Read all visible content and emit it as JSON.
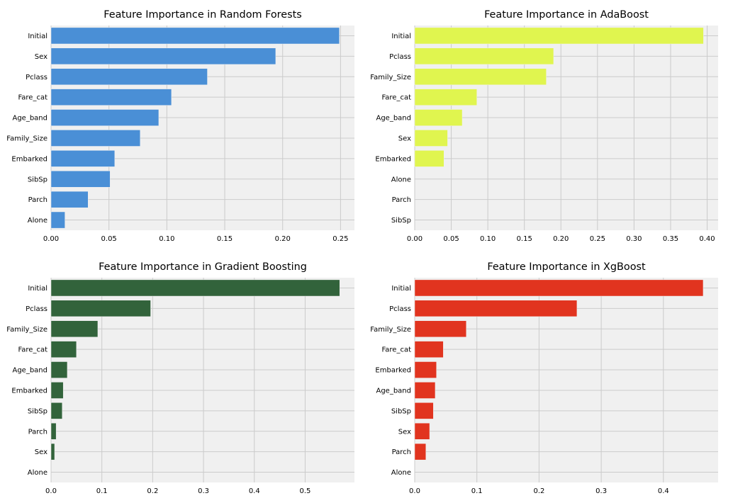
{
  "style": {
    "figure_background": "#ffffff",
    "axes_background": "#f0f0f0",
    "grid_color": "#cbcbcb",
    "bar_edge_color": "#f0f0f0"
  },
  "chart_data": [
    {
      "type": "bar",
      "title": "Feature Importance in Random Forests",
      "color": "#4a8fd6",
      "categories": [
        "Initial",
        "Sex",
        "Pclass",
        "Fare_cat",
        "Age_band",
        "Family_Size",
        "Embarked",
        "SibSp",
        "Parch",
        "Alone"
      ],
      "values": [
        0.249,
        0.194,
        0.135,
        0.104,
        0.093,
        0.077,
        0.055,
        0.051,
        0.032,
        0.012
      ],
      "xtick_values": [
        0,
        0.05,
        0.1,
        0.15,
        0.2,
        0.25
      ],
      "xtick_labels": [
        "0.00",
        "0.05",
        "0.10",
        "0.15",
        "0.20",
        "0.25"
      ],
      "xlim": [
        0,
        0.262
      ],
      "xlabel": "",
      "ylabel": "",
      "grid": true
    },
    {
      "type": "bar",
      "title": "Feature Importance in AdaBoost",
      "color": "#e0f54f",
      "categories": [
        "Initial",
        "Pclass",
        "Family_Size",
        "Fare_cat",
        "Age_band",
        "Sex",
        "Embarked",
        "Alone",
        "Parch",
        "SibSp"
      ],
      "values": [
        0.395,
        0.19,
        0.18,
        0.085,
        0.065,
        0.045,
        0.04,
        0,
        0,
        0
      ],
      "xtick_values": [
        0,
        0.05,
        0.1,
        0.15,
        0.2,
        0.25,
        0.3,
        0.35,
        0.4
      ],
      "xtick_labels": [
        "0.00",
        "0.05",
        "0.10",
        "0.15",
        "0.20",
        "0.25",
        "0.30",
        "0.35",
        "0.40"
      ],
      "xlim": [
        0,
        0.415
      ],
      "xlabel": "",
      "ylabel": "",
      "grid": true
    },
    {
      "type": "bar",
      "title": "Feature Importance in Gradient Boosting",
      "color": "#32633b",
      "categories": [
        "Initial",
        "Pclass",
        "Family_Size",
        "Fare_cat",
        "Age_band",
        "Embarked",
        "SibSp",
        "Parch",
        "Sex",
        "Alone"
      ],
      "values": [
        0.568,
        0.196,
        0.092,
        0.05,
        0.032,
        0.024,
        0.022,
        0.01,
        0.007,
        0
      ],
      "xtick_values": [
        0,
        0.1,
        0.2,
        0.3,
        0.4,
        0.5
      ],
      "xtick_labels": [
        "0.0",
        "0.1",
        "0.2",
        "0.3",
        "0.4",
        "0.5"
      ],
      "xlim": [
        0,
        0.597
      ],
      "xlabel": "",
      "ylabel": "",
      "grid": true
    },
    {
      "type": "bar",
      "title": "Feature Importance in XgBoost",
      "color": "#e1341f",
      "categories": [
        "Initial",
        "Pclass",
        "Family_Size",
        "Fare_cat",
        "Embarked",
        "Age_band",
        "SibSp",
        "Sex",
        "Parch",
        "Alone"
      ],
      "values": [
        0.464,
        0.261,
        0.083,
        0.046,
        0.035,
        0.033,
        0.03,
        0.024,
        0.018,
        0
      ],
      "xtick_values": [
        0,
        0.1,
        0.2,
        0.3,
        0.4
      ],
      "xtick_labels": [
        "0.0",
        "0.1",
        "0.2",
        "0.3",
        "0.4"
      ],
      "xlim": [
        0,
        0.488
      ],
      "xlabel": "",
      "ylabel": "",
      "grid": true
    }
  ]
}
